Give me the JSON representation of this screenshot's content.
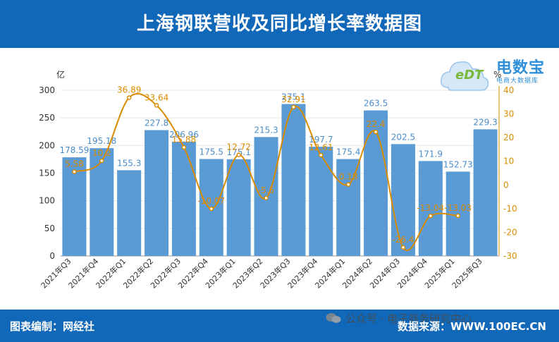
{
  "header": {
    "title": "上海钢联营收及同比增长率数据图"
  },
  "footer": {
    "left": "图表编制：网经社",
    "right": "数据来源：WWW.100EC.CN",
    "wechat": "公众号 · 电子商务研究中心"
  },
  "watermark": {
    "name": "电数宝",
    "sub": "电商大数据库",
    "logo": "eDT"
  },
  "colors": {
    "bar": "#5b9bd5",
    "line": "#d98c00",
    "header": "#1268b8",
    "bar_label": "#4a8cc8",
    "line_label": "#e08c00"
  },
  "chart_data": {
    "type": "bar",
    "categories": [
      "2021年Q3",
      "2021年Q4",
      "2022年Q1",
      "2022年Q2",
      "2022年Q3",
      "2022年Q4",
      "2023年Q1",
      "2023年Q2",
      "2023年Q3",
      "2023年Q4",
      "2024年Q1",
      "2024年Q2",
      "2024年Q3",
      "2024年Q4",
      "2025年Q1",
      "2025年Q3"
    ],
    "series": [
      {
        "kind": "bar",
        "axis": "left",
        "values": [
          178.59,
          195.18,
          155.3,
          227.8,
          206.96,
          175.5,
          175.1,
          215.3,
          275.1,
          197.7,
          175.4,
          263.5,
          202.5,
          171.9,
          152.73,
          229.3
        ]
      },
      {
        "kind": "line",
        "axis": "right",
        "values": [
          5.58,
          10.2,
          36.89,
          33.64,
          15.88,
          -10.07,
          12.72,
          -5.5,
          32.91,
          12.61,
          0.18,
          22.4,
          -26.4,
          -13.04,
          -13.03,
          null
        ]
      }
    ],
    "ylabel": "亿",
    "y2label": "%",
    "ylim": [
      0,
      300
    ],
    "y2lim": [
      -30,
      40
    ],
    "yticks": [
      "0",
      "50",
      "100",
      "150",
      "200",
      "250",
      "300"
    ],
    "y2ticks": [
      "-30",
      "-20",
      "-10",
      "0",
      "10",
      "20",
      "30",
      "40"
    ],
    "bar_labels": [
      "178.59",
      "195.18",
      "155.3",
      "227.8",
      "206.96",
      "175.5",
      "175.1",
      "215.3",
      "275.1",
      "197.7",
      "175.4",
      "263.5",
      "202.5",
      "171.9",
      "152.73",
      "229.3"
    ],
    "line_labels": [
      "5.58",
      "10.2",
      "36.89",
      "33.64",
      "15.88",
      "-10.07",
      "12.72",
      "-5.5",
      "32.91",
      "12.61",
      "0.18",
      "22.4",
      "-26.4",
      "-13.04",
      "-13.03",
      ""
    ]
  }
}
